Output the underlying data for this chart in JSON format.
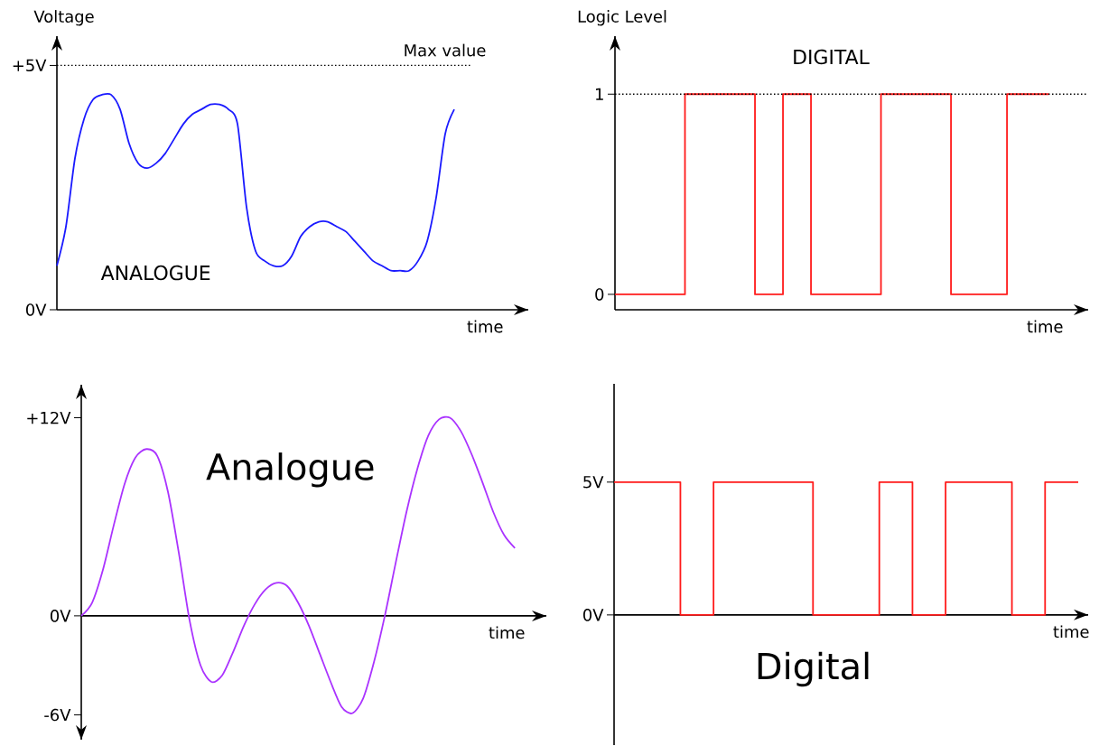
{
  "chart_data": [
    {
      "type": "line",
      "ylabel": "Voltage",
      "xlabel": "time",
      "color": "#1a1aff",
      "ylim": [
        0,
        5.6
      ],
      "yticks": [
        {
          "value": 5,
          "label": "+5V"
        },
        {
          "value": 0,
          "label": "0V"
        }
      ],
      "tick_labels": "y",
      "ref_lines": [
        {
          "axis": "y",
          "value": 5,
          "label": "Max value",
          "line_style": "dotted"
        }
      ],
      "annotations": [
        "ANALOGUE"
      ],
      "categories": [
        null,
        null,
        null,
        null,
        null,
        null,
        null,
        null,
        null,
        null,
        null,
        null,
        null,
        null,
        null,
        null,
        null,
        null,
        null,
        null,
        null,
        null,
        null,
        null,
        null,
        null,
        null,
        null,
        null,
        null,
        null,
        null,
        null,
        null,
        null,
        null,
        null,
        null,
        null,
        null,
        null,
        null,
        null,
        null,
        null
      ],
      "values": [
        0.9,
        1.7,
        3.1,
        3.9,
        4.3,
        4.4,
        4.4,
        4.1,
        3.4,
        3.0,
        2.9,
        3.0,
        3.2,
        3.5,
        3.8,
        4.0,
        4.1,
        4.2,
        4.2,
        4.1,
        3.8,
        2.1,
        1.2,
        1.0,
        0.9,
        0.9,
        1.1,
        1.5,
        1.7,
        1.8,
        1.8,
        1.7,
        1.6,
        1.4,
        1.2,
        1.0,
        0.9,
        0.8,
        0.8,
        0.8,
        1.0,
        1.4,
        2.3,
        3.6,
        4.1
      ]
    },
    {
      "type": "step",
      "ylabel": "Logic Level",
      "xlabel": "time",
      "color": "#ff1a1a",
      "ylim": [
        -0.077,
        1.29
      ],
      "yticks": [
        1,
        0
      ],
      "tick_labels": "y",
      "ref_lines": [
        {
          "axis": "y",
          "value": 1,
          "line_style": "dotted"
        }
      ],
      "annotations": [
        "DIGITAL"
      ],
      "categories": [
        null,
        null,
        null,
        null,
        null,
        null,
        null,
        null,
        null,
        null,
        null,
        null,
        null,
        null,
        null,
        null,
        null,
        null,
        null,
        null,
        null,
        null,
        null,
        null,
        null,
        null,
        null,
        null,
        null,
        null,
        null,
        null
      ],
      "values": [
        0,
        0,
        0,
        0,
        0,
        1,
        1,
        1,
        1,
        1,
        0,
        0,
        1,
        1,
        0,
        0,
        0,
        0,
        0,
        1,
        1,
        1,
        1,
        1,
        0,
        0,
        0,
        0,
        1,
        1,
        1,
        1
      ]
    },
    {
      "type": "line",
      "xlabel": "time",
      "color": "#aa33ff",
      "ylim": [
        -7.5,
        14
      ],
      "yticks": [
        {
          "value": 12,
          "label": "+12V"
        },
        {
          "value": 0,
          "label": "0V"
        },
        {
          "value": -6,
          "label": "-6V"
        }
      ],
      "tick_labels": "y",
      "annotations": [
        "Analogue"
      ],
      "categories": [
        null,
        null,
        null,
        null,
        null,
        null,
        null,
        null,
        null,
        null,
        null,
        null,
        null,
        null,
        null,
        null,
        null,
        null,
        null,
        null,
        null,
        null,
        null,
        null,
        null,
        null,
        null,
        null,
        null,
        null,
        null,
        null,
        null,
        null,
        null,
        null,
        null,
        null,
        null,
        null,
        null
      ],
      "values": [
        0,
        0.8,
        2.8,
        5.5,
        8.0,
        9.6,
        10.1,
        9.7,
        7.5,
        3.8,
        -0.3,
        -3.0,
        -4.0,
        -3.6,
        -2.2,
        -0.6,
        0.7,
        1.6,
        2.0,
        1.8,
        0.8,
        -0.6,
        -2.3,
        -4.0,
        -5.5,
        -5.9,
        -5.0,
        -2.8,
        0.0,
        3.2,
        6.3,
        8.9,
        10.9,
        11.9,
        12.0,
        11.2,
        9.8,
        8.1,
        6.3,
        4.9,
        4.1
      ]
    },
    {
      "type": "step",
      "xlabel": "time",
      "color": "#ff1a1a",
      "ylim": [
        -4.9,
        8.7
      ],
      "yticks": [
        {
          "value": 5,
          "label": "5V"
        },
        {
          "value": 0,
          "label": "0V"
        }
      ],
      "tick_labels": "y",
      "annotations": [
        "Digital"
      ],
      "categories": [
        null,
        null,
        null,
        null,
        null,
        null,
        null,
        null,
        null,
        null,
        null,
        null,
        null,
        null,
        null
      ],
      "values": [
        5,
        5,
        0,
        5,
        5,
        5,
        0,
        0,
        5,
        0,
        5,
        5,
        0,
        5,
        5
      ]
    }
  ]
}
